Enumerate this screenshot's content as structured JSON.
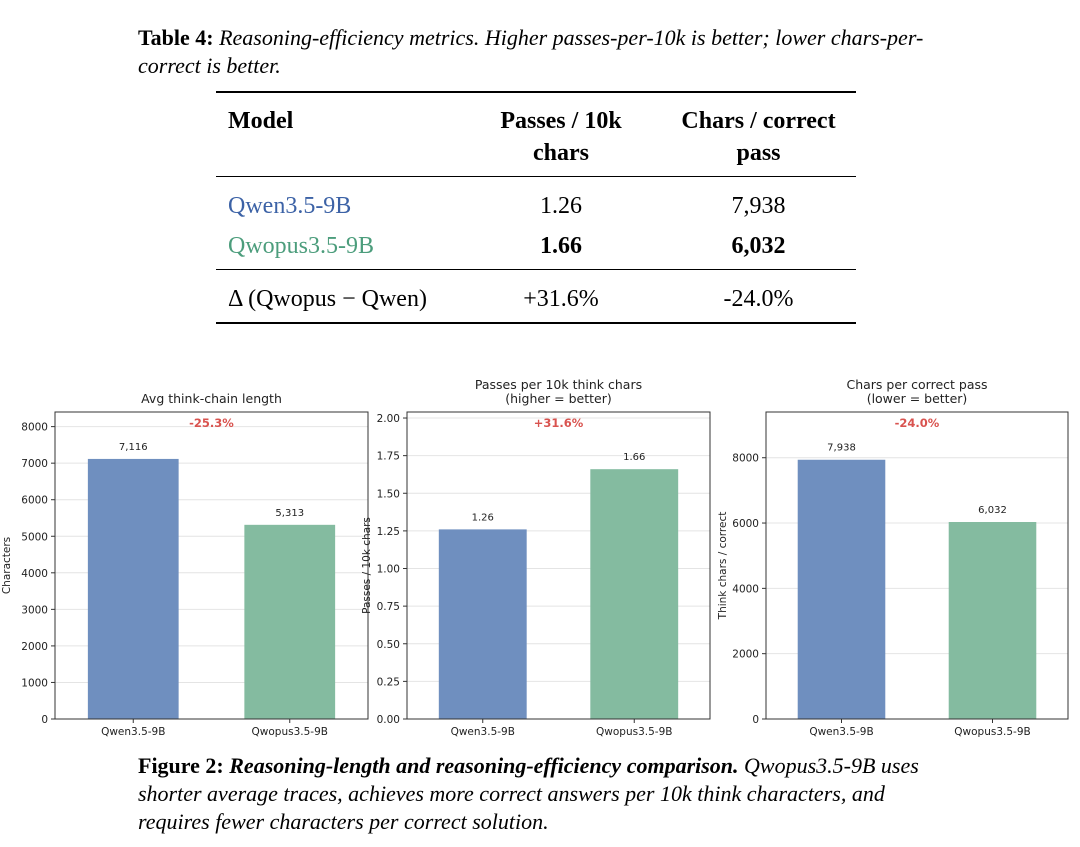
{
  "table_caption": {
    "label": "Table 4:",
    "text": "Reasoning-efficiency metrics. Higher passes-per-10k is better; lower chars-per-correct is better."
  },
  "table": {
    "headers": {
      "model": "Model",
      "passes_line1": "Passes / 10k",
      "passes_line2": "chars",
      "chars_line1": "Chars / correct",
      "chars_line2": "pass"
    },
    "rows": [
      {
        "model": "Qwen3.5-9B",
        "passes": "1.26",
        "chars": "7,938"
      },
      {
        "model": "Qwopus3.5-9B",
        "passes": "1.66",
        "chars": "6,032"
      }
    ],
    "delta": {
      "label": "Δ (Qwopus − Qwen)",
      "passes": "+31.6%",
      "chars": "-24.0%"
    }
  },
  "colors": {
    "qwen": "#6f8fbf",
    "qwopus": "#84bba0",
    "delta": "#d9534f",
    "qwen_text": "#3c62a6",
    "qwopus_text": "#4c9d7c"
  },
  "chart_data": [
    {
      "type": "bar",
      "title": "Avg think-chain length",
      "subtitle": "",
      "categories": [
        "Qwen3.5-9B",
        "Qwopus3.5-9B"
      ],
      "values": [
        7116,
        5313
      ],
      "value_labels": [
        "7,116",
        "5,313"
      ],
      "ylabel": "Characters",
      "xlabel": "",
      "ylim": [
        0,
        8400
      ],
      "yticks": [
        0,
        1000,
        2000,
        3000,
        4000,
        5000,
        6000,
        7000,
        8000
      ],
      "ytick_labels": [
        "0",
        "1000",
        "2000",
        "3000",
        "4000",
        "5000",
        "6000",
        "7000",
        "8000"
      ],
      "annotation": "-25.3%",
      "grid": true
    },
    {
      "type": "bar",
      "title": "Passes per 10k think chars",
      "subtitle": "(higher = better)",
      "categories": [
        "Qwen3.5-9B",
        "Qwopus3.5-9B"
      ],
      "values": [
        1.26,
        1.66
      ],
      "value_labels": [
        "1.26",
        "1.66"
      ],
      "ylabel": "Passes / 10k chars",
      "xlabel": "",
      "ylim": [
        0,
        2.04
      ],
      "yticks": [
        0,
        0.25,
        0.5,
        0.75,
        1.0,
        1.25,
        1.5,
        1.75,
        2.0
      ],
      "ytick_labels": [
        "0.00",
        "0.25",
        "0.50",
        "0.75",
        "1.00",
        "1.25",
        "1.50",
        "1.75",
        "2.00"
      ],
      "annotation": "+31.6%",
      "grid": true
    },
    {
      "type": "bar",
      "title": "Chars per correct pass",
      "subtitle": "(lower = better)",
      "categories": [
        "Qwen3.5-9B",
        "Qwopus3.5-9B"
      ],
      "values": [
        7938,
        6032
      ],
      "value_labels": [
        "7,938",
        "6,032"
      ],
      "ylabel": "Think chars / correct",
      "xlabel": "",
      "ylim": [
        0,
        9400
      ],
      "yticks": [
        0,
        2000,
        4000,
        6000,
        8000
      ],
      "ytick_labels": [
        "0",
        "2000",
        "4000",
        "6000",
        "8000"
      ],
      "annotation": "-24.0%",
      "grid": true
    }
  ],
  "figure_caption": {
    "label": "Figure 2:",
    "bold_italic": "Reasoning-length and reasoning-efficiency comparison.",
    "text": "Qwopus3.5-9B uses shorter average traces, achieves more correct answers per 10k think characters, and requires fewer characters per correct solution."
  }
}
